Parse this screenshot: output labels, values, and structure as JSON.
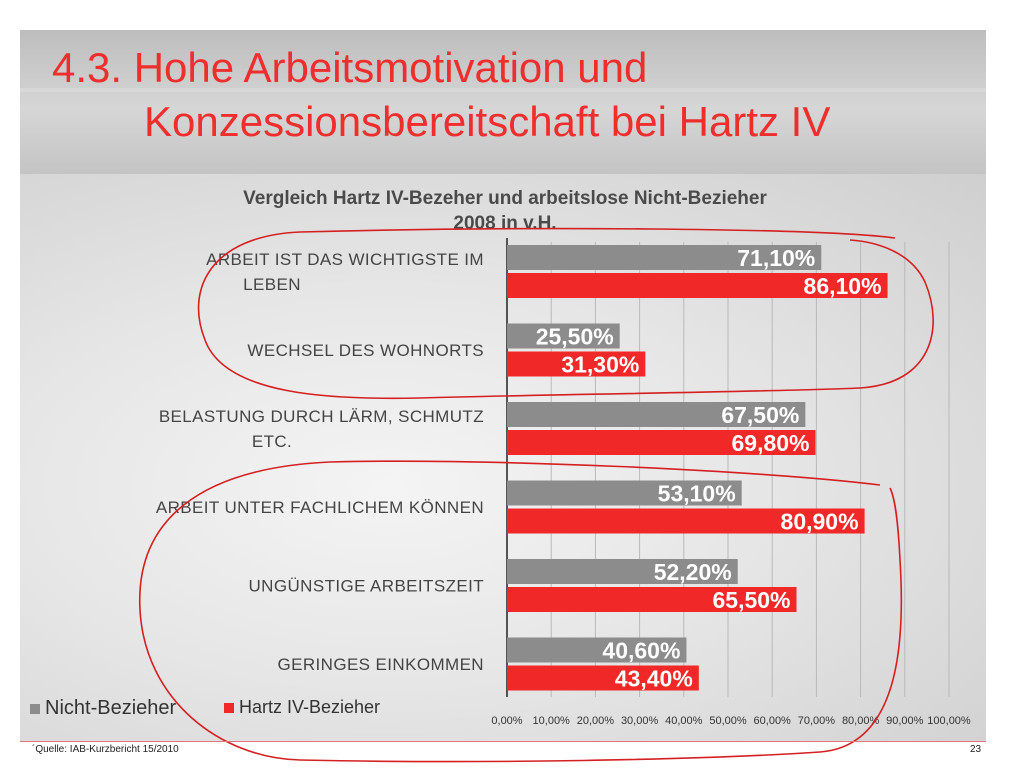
{
  "slide": {
    "title_line1": "4.3. Hohe Arbeitsmotivation und",
    "title_line2": "Konzessionsbereitschaft bei Hartz IV",
    "source": "´Quelle: IAB-Kurzbericht 15/2010",
    "page_number": "23"
  },
  "colors": {
    "title": "#ee2d2d",
    "series_nicht": "#8c8c8c",
    "series_hartz": "#f02828",
    "annotation": "#d42020"
  },
  "chart_data": {
    "type": "bar",
    "orientation": "horizontal",
    "title_line1": "Vergleich Hartz IV-Bezeher und arbeitslose Nicht-Bezieher",
    "title_line2": "2008 in v.H.",
    "categories": [
      [
        "ARBEIT IST DAS WICHTIGSTE IM",
        "LEBEN"
      ],
      [
        "WECHSEL DES WOHNORTS"
      ],
      [
        "BELASTUNG DURCH LÄRM, SCHMUTZ",
        "ETC."
      ],
      [
        "ARBEIT UNTER FACHLICHEM KÖNNEN"
      ],
      [
        "UNGÜNSTIGE ARBEITSZEIT"
      ],
      [
        "GERINGES EINKOMMEN"
      ]
    ],
    "series": [
      {
        "name": "Nicht-Bezieher",
        "values": [
          71.1,
          25.5,
          67.5,
          53.1,
          52.2,
          40.6
        ],
        "labels": [
          "71,10%",
          "25,50%",
          "67,50%",
          "53,10%",
          "52,20%",
          "40,60%"
        ]
      },
      {
        "name": "Hartz IV-Bezieher",
        "values": [
          86.1,
          31.3,
          69.8,
          80.9,
          65.5,
          43.4
        ],
        "labels": [
          "86,10%",
          "31,30%",
          "69,80%",
          "80,90%",
          "65,50%",
          "43,40%"
        ]
      }
    ],
    "xlim": [
      0,
      100
    ],
    "xticks": [
      "0,00%",
      "10,00%",
      "20,00%",
      "30,00%",
      "40,00%",
      "50,00%",
      "60,00%",
      "70,00%",
      "80,00%",
      "90,00%",
      "100,00%"
    ],
    "grid": true,
    "legend_position": "bottom-left"
  }
}
